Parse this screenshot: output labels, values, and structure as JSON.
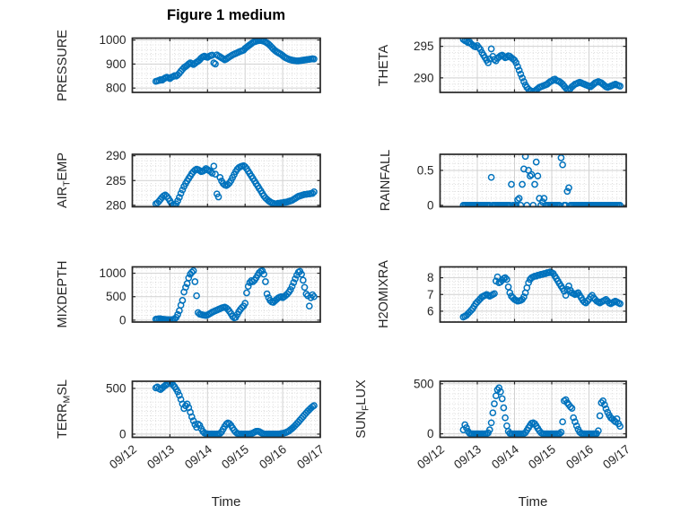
{
  "figure": {
    "title": "Figure 1 medium",
    "xlabel": "Time",
    "marker_color": "#0072BD",
    "axis_color": "#262626",
    "grid_color": "#d1d1d1",
    "minor_grid_color": "#d0d0d0",
    "background": "#ffffff"
  },
  "x_axis": {
    "xlim_days": [
      0,
      5
    ],
    "tick_labels": [
      "09/12",
      "09/13",
      "09/14",
      "09/15",
      "09/16",
      "09/17"
    ],
    "tick_values": [
      0,
      1,
      2,
      3,
      4,
      5
    ],
    "minor_step_days": 0.125,
    "hours_since_0912": [
      15,
      16,
      17,
      18,
      19,
      20,
      21,
      22,
      23,
      24,
      25,
      26,
      27,
      28,
      29,
      30,
      31,
      32,
      33,
      34,
      35,
      36,
      37,
      38,
      39,
      40,
      41,
      42,
      43,
      44,
      45,
      46,
      47,
      48,
      49,
      50,
      51,
      52,
      53,
      54,
      55,
      56,
      57,
      58,
      59,
      60,
      61,
      62,
      63,
      64,
      65,
      66,
      67,
      68,
      69,
      70,
      71,
      72,
      73,
      74,
      75,
      76,
      77,
      78,
      79,
      80,
      81,
      82,
      83,
      84,
      85,
      86,
      87,
      88,
      89,
      90,
      91,
      92,
      93,
      94,
      95,
      96,
      97,
      98,
      99,
      100,
      101,
      102,
      103,
      104,
      105,
      106,
      107,
      108,
      109,
      110,
      111,
      112,
      113,
      114,
      115,
      116
    ]
  },
  "chart_data": [
    {
      "id": "pressure",
      "type": "scatter",
      "col": "L",
      "row": 0,
      "ylabel": "PRESSURE",
      "ylabel_parts": {
        "pre": "PRESSURE",
        "sub": "",
        "post": ""
      },
      "yticks": [
        800,
        900,
        1000
      ],
      "ytick_labels": [
        "800",
        "900",
        "1000"
      ],
      "ylim": [
        782,
        1008
      ],
      "yminor": 20,
      "y": [
        828,
        830,
        832,
        835,
        833,
        838,
        842,
        845,
        843,
        840,
        845,
        848,
        852,
        850,
        855,
        862,
        870,
        878,
        885,
        890,
        895,
        900,
        905,
        902,
        898,
        903,
        908,
        912,
        918,
        925,
        930,
        933,
        930,
        928,
        932,
        935,
        937,
        905,
        900,
        938,
        934,
        930,
        926,
        922,
        918,
        921,
        926,
        930,
        934,
        938,
        941,
        944,
        947,
        950,
        953,
        955,
        958,
        965,
        970,
        975,
        980,
        985,
        990,
        993,
        995,
        997,
        998,
        998,
        997,
        995,
        992,
        988,
        983,
        977,
        970,
        963,
        957,
        952,
        948,
        944,
        940,
        935,
        930,
        926,
        923,
        920,
        918,
        916,
        915,
        914,
        913,
        913,
        914,
        915,
        916,
        917,
        918,
        919,
        920,
        921,
        922,
        921
      ]
    },
    {
      "id": "airtemp",
      "type": "scatter",
      "col": "L",
      "row": 1,
      "ylabel": "AIR_TEMP",
      "ylabel_parts": {
        "pre": "AIR",
        "sub": "T",
        "post": "EMP"
      },
      "yticks": [
        280,
        285,
        290
      ],
      "ytick_labels": [
        "280",
        "285",
        "290"
      ],
      "ylim": [
        279.7,
        290.3
      ],
      "yminor": 1,
      "y": [
        280.3,
        280.5,
        280.8,
        281.2,
        281.6,
        281.9,
        282.1,
        281.8,
        281.4,
        280.9,
        280.4,
        280.1,
        280.0,
        280.3,
        280.9,
        281.6,
        282.4,
        283.1,
        283.8,
        284.4,
        284.9,
        285.4,
        285.9,
        286.4,
        286.8,
        287.1,
        287.3,
        287.2,
        287.0,
        286.8,
        286.9,
        287.1,
        287.4,
        287.2,
        287.0,
        286.8,
        286.5,
        287.9,
        286.3,
        282.3,
        281.7,
        285.6,
        284.9,
        284.4,
        284.1,
        284.0,
        284.2,
        284.5,
        285.0,
        285.6,
        286.2,
        286.8,
        287.3,
        287.6,
        287.8,
        287.9,
        288.0,
        287.8,
        287.4,
        286.9,
        286.4,
        285.9,
        285.4,
        284.9,
        284.4,
        283.9,
        283.4,
        282.9,
        282.4,
        281.9,
        281.5,
        281.2,
        280.9,
        280.7,
        280.5,
        280.4,
        280.3,
        280.3,
        280.4,
        280.4,
        280.5,
        280.5,
        280.6,
        280.6,
        280.7,
        280.8,
        280.9,
        281.0,
        281.2,
        281.4,
        281.6,
        281.8,
        281.9,
        282.0,
        282.1,
        282.2,
        282.2,
        282.3,
        282.3,
        282.4,
        282.4,
        282.7
      ]
    },
    {
      "id": "mixdepth",
      "type": "scatter",
      "col": "L",
      "row": 2,
      "ylabel": "MIXDEPTH",
      "ylabel_parts": {
        "pre": "MIXDEPTH",
        "sub": "",
        "post": ""
      },
      "yticks": [
        0,
        500,
        1000
      ],
      "ytick_labels": [
        "0",
        "500",
        "1000"
      ],
      "ylim": [
        -40,
        1135
      ],
      "yminor": 100,
      "y": [
        20,
        25,
        30,
        28,
        22,
        18,
        15,
        12,
        10,
        8,
        10,
        15,
        25,
        60,
        120,
        200,
        320,
        420,
        600,
        700,
        780,
        900,
        980,
        1020,
        1050,
        820,
        520,
        160,
        130,
        120,
        110,
        105,
        100,
        110,
        130,
        150,
        170,
        185,
        200,
        215,
        230,
        245,
        260,
        270,
        280,
        260,
        230,
        190,
        140,
        80,
        50,
        60,
        120,
        180,
        230,
        270,
        300,
        360,
        580,
        720,
        800,
        840,
        820,
        850,
        900,
        960,
        1010,
        1040,
        1050,
        980,
        820,
        560,
        480,
        420,
        390,
        380,
        410,
        440,
        470,
        490,
        500,
        480,
        500,
        530,
        560,
        600,
        650,
        720,
        800,
        880,
        960,
        1020,
        1040,
        980,
        850,
        700,
        560,
        520,
        300,
        480,
        540,
        500
      ]
    },
    {
      "id": "terrmsl",
      "type": "scatter",
      "col": "L",
      "row": 3,
      "ylabel": "TERR_MSL",
      "ylabel_parts": {
        "pre": "TERR",
        "sub": "M",
        "post": "SL"
      },
      "yticks": [
        0,
        500
      ],
      "ytick_labels": [
        "0",
        "500"
      ],
      "ylim": [
        -35,
        578
      ],
      "yminor": 50,
      "y": [
        505,
        515,
        498,
        488,
        502,
        518,
        532,
        545,
        552,
        560,
        552,
        538,
        518,
        492,
        462,
        425,
        380,
        330,
        280,
        310,
        330,
        290,
        240,
        190,
        145,
        105,
        75,
        110,
        95,
        60,
        30,
        12,
        5,
        2,
        0,
        0,
        0,
        0,
        0,
        0,
        2,
        8,
        25,
        55,
        85,
        110,
        122,
        115,
        95,
        68,
        42,
        22,
        8,
        2,
        0,
        0,
        0,
        0,
        0,
        0,
        2,
        5,
        12,
        22,
        30,
        32,
        28,
        18,
        8,
        2,
        0,
        0,
        0,
        0,
        0,
        0,
        0,
        0,
        0,
        2,
        5,
        8,
        12,
        18,
        25,
        35,
        48,
        62,
        78,
        95,
        113,
        132,
        152,
        172,
        192,
        212,
        232,
        250,
        268,
        285,
        300,
        312,
        298
      ]
    },
    {
      "id": "theta",
      "type": "scatter",
      "col": "R",
      "row": 0,
      "ylabel": "THETA",
      "ylabel_parts": {
        "pre": "THETA",
        "sub": "",
        "post": ""
      },
      "yticks": [
        290,
        295
      ],
      "ytick_labels": [
        "290",
        "295"
      ],
      "ylim": [
        287.7,
        296.3
      ],
      "yminor": 1,
      "y": [
        296.1,
        295.9,
        295.8,
        295.6,
        295.7,
        295.4,
        295.2,
        295.0,
        294.9,
        295.1,
        294.8,
        294.5,
        294.0,
        293.6,
        293.2,
        292.8,
        292.4,
        293.0,
        294.6,
        293.4,
        292.9,
        292.7,
        293.1,
        293.3,
        293.5,
        293.6,
        293.4,
        293.2,
        293.3,
        293.5,
        293.4,
        293.2,
        293.0,
        292.8,
        292.4,
        291.8,
        291.2,
        290.6,
        290.0,
        289.4,
        288.9,
        288.5,
        288.2,
        288.0,
        287.9,
        287.8,
        287.9,
        288.1,
        288.3,
        288.5,
        288.6,
        288.7,
        288.8,
        288.9,
        289.0,
        289.2,
        289.4,
        289.5,
        289.7,
        289.8,
        289.6,
        289.5,
        289.4,
        289.2,
        289.0,
        288.7,
        288.4,
        288.2,
        288.1,
        288.3,
        288.6,
        288.8,
        289.0,
        289.1,
        289.2,
        289.3,
        289.2,
        289.1,
        289.0,
        288.9,
        288.8,
        288.7,
        288.6,
        288.8,
        289.0,
        289.2,
        289.3,
        289.4,
        289.3,
        289.2,
        289.0,
        288.8,
        288.6,
        288.5,
        288.6,
        288.7,
        288.8,
        288.9,
        289.0,
        288.9,
        288.8,
        288.7
      ]
    },
    {
      "id": "rainfall",
      "type": "scatter",
      "col": "R",
      "row": 1,
      "ylabel": "RAINFALL",
      "ylabel_parts": {
        "pre": "RAINFALL",
        "sub": "",
        "post": ""
      },
      "yticks": [
        0,
        0.5
      ],
      "ytick_labels": [
        "0",
        "0.5"
      ],
      "ylim": [
        -0.02,
        0.73
      ],
      "yminor": 0.1,
      "y": [
        0,
        0,
        0,
        0,
        0,
        0,
        0,
        0,
        0,
        0,
        0,
        0,
        0,
        0,
        0,
        0,
        0,
        0,
        0.4,
        0,
        0,
        0,
        0,
        0,
        0,
        0,
        0,
        0,
        0,
        0,
        0,
        0.3,
        0,
        0,
        0,
        0.08,
        0.1,
        0,
        0.3,
        0.52,
        0.7,
        0,
        0.5,
        0.42,
        0.44,
        0,
        0.3,
        0.62,
        0.42,
        0.1,
        0,
        0.05,
        0.1,
        0,
        0,
        0,
        0,
        0,
        0,
        0,
        0,
        0,
        0,
        0.68,
        0.58,
        0,
        0,
        0.2,
        0.25,
        0,
        0,
        0,
        0,
        0,
        0,
        0,
        0,
        0,
        0,
        0,
        0,
        0,
        0,
        0,
        0,
        0,
        0,
        0,
        0,
        0,
        0,
        0,
        0,
        0,
        0,
        0,
        0,
        0,
        0,
        0,
        0,
        0
      ]
    },
    {
      "id": "h2omixra",
      "type": "scatter",
      "col": "R",
      "row": 2,
      "ylabel": "H2OMIXRA",
      "ylabel_parts": {
        "pre": "H2OMIXRA",
        "sub": "",
        "post": ""
      },
      "yticks": [
        6,
        7,
        8
      ],
      "ytick_labels": [
        "6",
        "7",
        "8"
      ],
      "ylim": [
        5.35,
        8.65
      ],
      "yminor": 0.2,
      "y": [
        5.65,
        5.7,
        5.75,
        5.85,
        5.95,
        6.05,
        6.15,
        6.3,
        6.45,
        6.55,
        6.65,
        6.75,
        6.85,
        6.9,
        6.95,
        7.0,
        6.95,
        6.9,
        6.95,
        7.0,
        7.05,
        7.8,
        8.05,
        7.7,
        7.75,
        7.85,
        7.95,
        8.0,
        7.9,
        7.45,
        7.1,
        6.9,
        6.8,
        6.7,
        6.65,
        6.6,
        6.62,
        6.65,
        6.7,
        6.85,
        7.1,
        7.4,
        7.7,
        7.9,
        8.0,
        8.05,
        8.1,
        8.1,
        8.15,
        8.15,
        8.2,
        8.2,
        8.25,
        8.25,
        8.3,
        8.3,
        8.35,
        8.3,
        8.25,
        8.1,
        7.95,
        7.8,
        7.65,
        7.5,
        7.35,
        7.2,
        6.95,
        7.3,
        7.5,
        7.25,
        7.1,
        7.05,
        7.0,
        7.05,
        7.1,
        6.95,
        6.8,
        6.65,
        6.55,
        6.5,
        6.6,
        6.7,
        6.85,
        6.95,
        6.8,
        6.7,
        6.6,
        6.55,
        6.5,
        6.55,
        6.6,
        6.65,
        6.7,
        6.6,
        6.5,
        6.45,
        6.5,
        6.55,
        6.6,
        6.55,
        6.5,
        6.45
      ]
    },
    {
      "id": "sunflux",
      "type": "scatter",
      "col": "R",
      "row": 3,
      "ylabel": "SUN_FLUX",
      "ylabel_parts": {
        "pre": "SUN",
        "sub": "F",
        "post": "LUX"
      },
      "yticks": [
        0,
        500
      ],
      "ytick_labels": [
        "0",
        "500"
      ],
      "ylim": [
        -35,
        525
      ],
      "yminor": 50,
      "y": [
        40,
        90,
        60,
        25,
        5,
        0,
        0,
        0,
        0,
        0,
        0,
        0,
        0,
        0,
        0,
        2,
        10,
        40,
        110,
        210,
        300,
        380,
        440,
        460,
        420,
        350,
        260,
        160,
        80,
        25,
        5,
        0,
        0,
        0,
        0,
        0,
        0,
        0,
        0,
        3,
        12,
        35,
        60,
        85,
        105,
        110,
        100,
        80,
        55,
        30,
        12,
        3,
        0,
        0,
        0,
        0,
        0,
        0,
        0,
        0,
        0,
        0,
        2,
        15,
        120,
        330,
        340,
        310,
        290,
        270,
        255,
        160,
        120,
        80,
        45,
        18,
        5,
        0,
        0,
        0,
        0,
        0,
        0,
        0,
        0,
        0,
        3,
        30,
        180,
        310,
        330,
        290,
        250,
        215,
        185,
        160,
        150,
        135,
        120,
        150,
        100,
        75
      ]
    }
  ]
}
